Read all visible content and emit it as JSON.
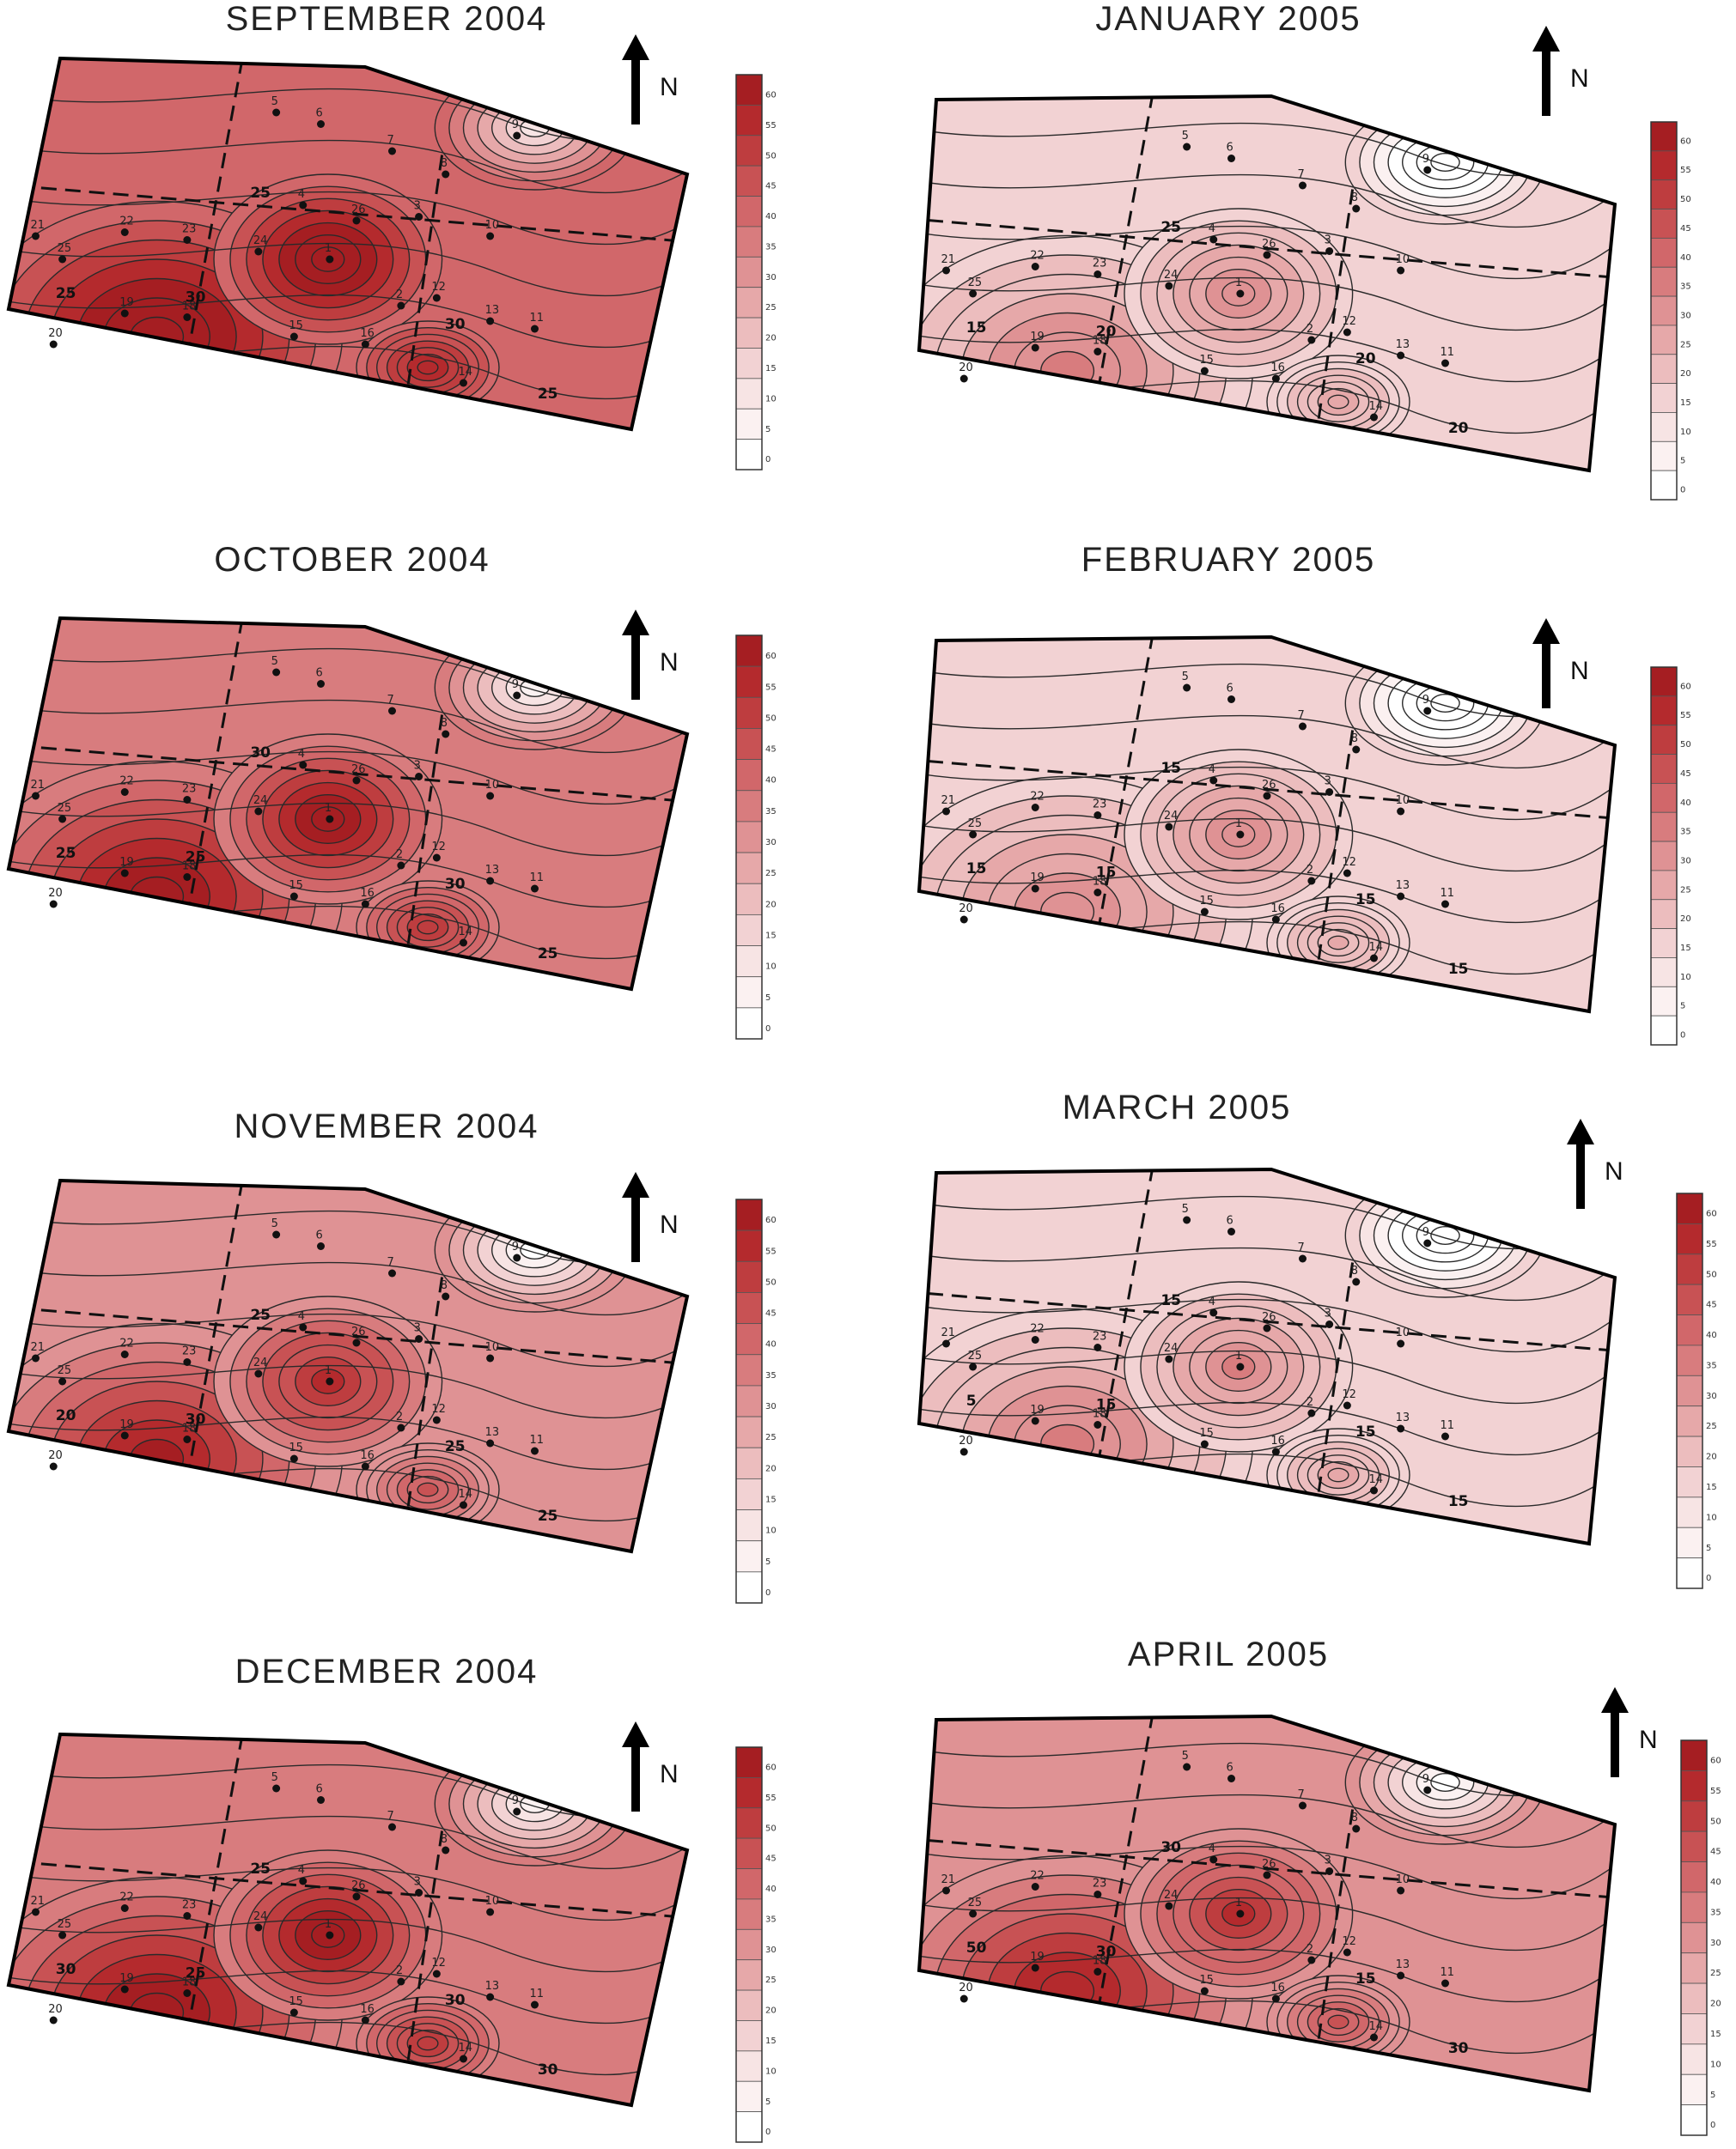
{
  "legend": {
    "ticks": [
      "60",
      "55",
      "50",
      "45",
      "40",
      "35",
      "30",
      "25",
      "20",
      "15",
      "10",
      "5",
      "0"
    ],
    "colors": [
      "#a51e22",
      "#b42a2d",
      "#be3d3f",
      "#c85254",
      "#d1676a",
      "#d87c7e",
      "#df9294",
      "#e6a8a9",
      "#ecbdbe",
      "#f2d2d3",
      "#f7e4e4",
      "#fbf1f1",
      "#ffffff"
    ]
  },
  "north_label": "N",
  "panels": [
    {
      "title": "SEPTEMBER 2004",
      "stations": [
        "5",
        "6",
        "7",
        "8",
        "9",
        "25",
        "4",
        "26",
        "3",
        "21",
        "22",
        "23",
        "24",
        "1",
        "10",
        "20",
        "2",
        "19",
        "18",
        "15",
        "16",
        "12",
        "13",
        "14",
        "11"
      ],
      "contour_labels": [
        "25",
        "25",
        "30",
        "30",
        "25"
      ],
      "intensity": 0.85
    },
    {
      "title": "JANUARY 2005",
      "stations": [
        "5",
        "6",
        "7",
        "8",
        "9",
        "25",
        "4",
        "26",
        "3",
        "21",
        "22",
        "23",
        "24",
        "1",
        "10",
        "20",
        "2",
        "19",
        "18",
        "15",
        "16",
        "12",
        "13",
        "14",
        "11"
      ],
      "contour_labels": [
        "25",
        "15",
        "20",
        "20",
        "20"
      ],
      "intensity": 0.35
    },
    {
      "title": "OCTOBER 2004",
      "stations": [
        "5",
        "6",
        "7",
        "8",
        "9",
        "25",
        "4",
        "26",
        "3",
        "21",
        "22",
        "23",
        "24",
        "1",
        "10",
        "20",
        "2",
        "19",
        "18",
        "15",
        "16",
        "12",
        "13",
        "14",
        "11"
      ],
      "contour_labels": [
        "30",
        "25",
        "25",
        "30",
        "25"
      ],
      "intensity": 0.82
    },
    {
      "title": "FEBRUARY 2005",
      "stations": [
        "5",
        "6",
        "7",
        "8",
        "9",
        "25",
        "4",
        "26",
        "3",
        "21",
        "22",
        "23",
        "24",
        "1",
        "10",
        "20",
        "2",
        "19",
        "18",
        "15",
        "16",
        "12",
        "13",
        "14",
        "11"
      ],
      "contour_labels": [
        "15",
        "15",
        "15",
        "15",
        "15"
      ],
      "intensity": 0.28
    },
    {
      "title": "NOVEMBER 2004",
      "stations": [
        "5",
        "6",
        "7",
        "8",
        "9",
        "25",
        "4",
        "26",
        "3",
        "21",
        "22",
        "23",
        "24",
        "1",
        "10",
        "20",
        "2",
        "19",
        "18",
        "15",
        "16",
        "12",
        "13",
        "14",
        "11"
      ],
      "contour_labels": [
        "25",
        "20",
        "30",
        "25",
        "25"
      ],
      "intensity": 0.7
    },
    {
      "title": "MARCH 2005",
      "stations": [
        "5",
        "6",
        "7",
        "8",
        "9",
        "25",
        "4",
        "26",
        "3",
        "21",
        "22",
        "23",
        "24",
        "1",
        "10",
        "20",
        "2",
        "19",
        "18",
        "15",
        "16",
        "12",
        "13",
        "14",
        "11"
      ],
      "contour_labels": [
        "15",
        "5",
        "15",
        "15",
        "15"
      ],
      "intensity": 0.38
    },
    {
      "title": "DECEMBER 2004",
      "stations": [
        "5",
        "6",
        "7",
        "8",
        "9",
        "25",
        "4",
        "26",
        "3",
        "21",
        "22",
        "23",
        "24",
        "1",
        "10",
        "20",
        "2",
        "19",
        "18",
        "15",
        "16",
        "12",
        "13",
        "14",
        "11"
      ],
      "contour_labels": [
        "25",
        "30",
        "25",
        "30",
        "30"
      ],
      "intensity": 0.8
    },
    {
      "title": "APRIL 2005",
      "stations": [
        "5",
        "6",
        "7",
        "8",
        "9",
        "25",
        "4",
        "26",
        "3",
        "21",
        "22",
        "23",
        "24",
        "1",
        "10",
        "20",
        "2",
        "19",
        "18",
        "15",
        "16",
        "12",
        "13",
        "14",
        "11"
      ],
      "contour_labels": [
        "30",
        "50",
        "30",
        "15",
        "30"
      ],
      "intensity": 0.65
    }
  ]
}
